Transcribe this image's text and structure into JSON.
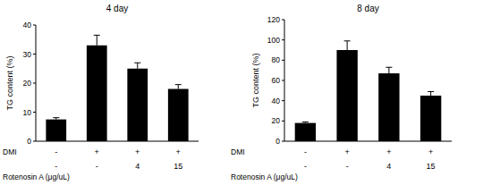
{
  "chart_data": [
    {
      "type": "bar",
      "title": "4 day",
      "y_label": "TG content (%)",
      "categories": [
        null,
        null,
        null,
        null
      ],
      "values": [
        7.5,
        33,
        25,
        18
      ],
      "errors": [
        0.6,
        3.5,
        2,
        1.5
      ],
      "color": "#000000",
      "ylim": [
        0,
        40
      ],
      "yticks": [
        0,
        10,
        20,
        30,
        40
      ],
      "grid": false,
      "treatment_rows": [
        {
          "label": "DMI",
          "values": [
            "-",
            "+",
            "+",
            "+"
          ]
        },
        {
          "label": "Rotenosin A (μg/uL)",
          "values": [
            "-",
            "-",
            "4",
            "15"
          ]
        }
      ]
    },
    {
      "type": "bar",
      "title": "8 day",
      "y_label": "TG content (%)",
      "categories": [
        null,
        null,
        null,
        null
      ],
      "values": [
        18,
        90,
        67,
        45
      ],
      "errors": [
        1,
        9,
        6,
        4
      ],
      "color": "#000000",
      "ylim": [
        0,
        120
      ],
      "yticks": [
        0,
        20,
        40,
        60,
        80,
        100,
        120
      ],
      "grid": false,
      "treatment_rows": [
        {
          "label": "DMI",
          "values": [
            "-",
            "+",
            "+",
            "+"
          ]
        },
        {
          "label": "Rotenosin A (μg/uL)",
          "values": [
            "-",
            "-",
            "4",
            "15"
          ]
        }
      ]
    }
  ]
}
